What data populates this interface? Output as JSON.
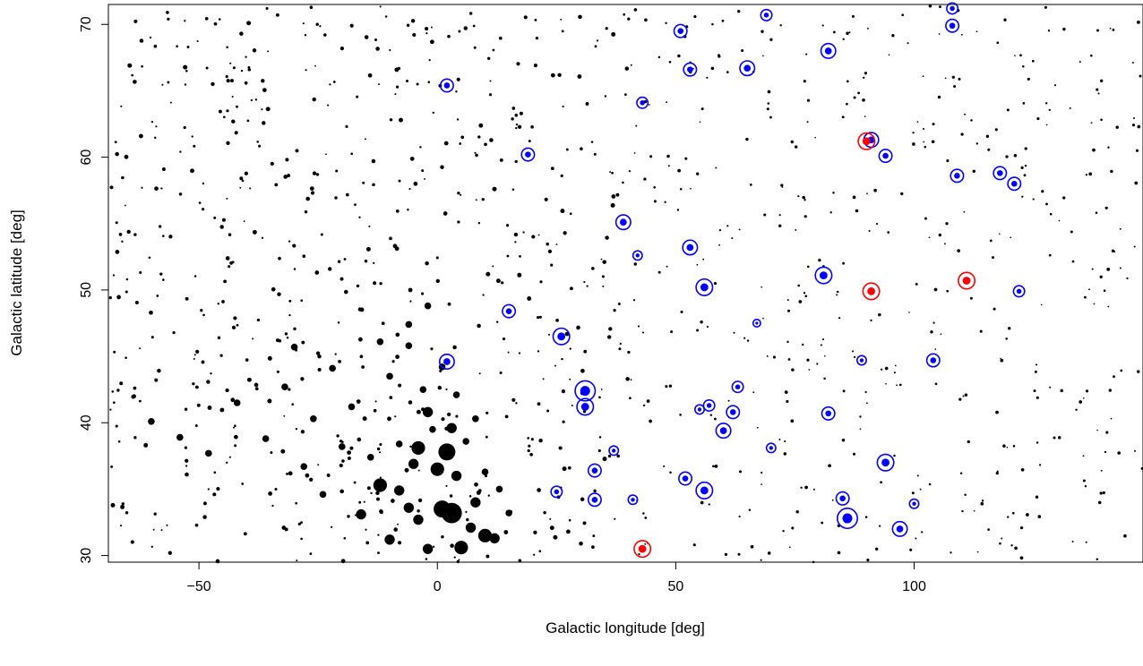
{
  "chart_data": {
    "type": "scatter",
    "title": "",
    "xlabel": "Galactic longitude [deg]",
    "ylabel": "Galactic latitude [deg]",
    "xlim": [
      -69,
      148
    ],
    "ylim": [
      29.5,
      71.5
    ],
    "xticks": [
      -50,
      0,
      50,
      100
    ],
    "yticks": [
      30,
      40,
      50,
      60,
      70
    ],
    "xtick_labels": [
      "−50",
      "0",
      "50",
      "100"
    ],
    "ytick_labels": [
      "30",
      "40",
      "50",
      "60",
      "70"
    ],
    "grid": false,
    "legend": "none",
    "colors": {
      "background": "#000000",
      "blue": "#0000ff",
      "red": "#ff0000"
    },
    "series": [
      {
        "kind": "large-black-dots",
        "points": [
          [
            1,
            33.5,
            5
          ],
          [
            3,
            33.2,
            6
          ],
          [
            2,
            37.8,
            5
          ],
          [
            -4,
            38.1,
            4
          ],
          [
            0,
            36.5,
            4
          ],
          [
            -12,
            35.3,
            4
          ],
          [
            5,
            30.6,
            4
          ],
          [
            -10,
            31.2,
            3
          ],
          [
            3,
            39.6,
            3
          ],
          [
            -2,
            40.8,
            3
          ],
          [
            10,
            31.5,
            4
          ],
          [
            7,
            32.1,
            3
          ],
          [
            -8,
            34.9,
            3
          ],
          [
            -4,
            32.7,
            3
          ],
          [
            -6,
            33.6,
            3
          ],
          [
            -2,
            30.5,
            3
          ],
          [
            8,
            34.0,
            3
          ],
          [
            12,
            31.3,
            3
          ],
          [
            -16,
            33.1,
            3
          ],
          [
            -5,
            36.9,
            3
          ],
          [
            4,
            36.0,
            3
          ],
          [
            -8,
            38.4,
            2
          ],
          [
            -14,
            37.4,
            2
          ],
          [
            -3,
            42.5,
            2
          ],
          [
            1,
            44.2,
            2
          ],
          [
            -6,
            45.8,
            2
          ],
          [
            -10,
            43.5,
            2
          ],
          [
            -12,
            46.1,
            2
          ],
          [
            6,
            38.6,
            2
          ],
          [
            10,
            36.3,
            2
          ],
          [
            -1,
            39.5,
            2
          ],
          [
            -20,
            38.2,
            2
          ],
          [
            -24,
            34.6,
            2
          ],
          [
            -28,
            36.7,
            2
          ],
          [
            -18,
            41.2,
            2
          ],
          [
            -26,
            40.3,
            2
          ],
          [
            -32,
            42.7,
            2
          ],
          [
            -36,
            38.8,
            2
          ],
          [
            -42,
            41.5,
            2
          ],
          [
            -54,
            38.9,
            2
          ],
          [
            -60,
            40.1,
            2
          ],
          [
            -48,
            37.7,
            2
          ],
          [
            -6,
            47.4,
            2
          ],
          [
            -2,
            48.8,
            2
          ],
          [
            4,
            42.1,
            2
          ],
          [
            8,
            40.3,
            2
          ],
          [
            13,
            35.0,
            2
          ],
          [
            15,
            33.2,
            2
          ],
          [
            -22,
            44.1,
            2
          ],
          [
            -30,
            45.7,
            2
          ]
        ]
      },
      {
        "kind": "blue-circled",
        "points": [
          [
            2,
            65.4,
            6
          ],
          [
            43,
            64.1,
            5
          ],
          [
            19,
            60.2,
            6
          ],
          [
            15,
            48.4,
            6
          ],
          [
            26,
            46.5,
            8
          ],
          [
            39,
            55.1,
            7
          ],
          [
            42,
            52.6,
            4
          ],
          [
            31,
            42.4,
            10
          ],
          [
            31,
            41.2,
            8
          ],
          [
            2,
            44.6,
            7
          ],
          [
            25,
            34.8,
            5
          ],
          [
            33,
            34.2,
            6
          ],
          [
            33,
            36.4,
            6
          ],
          [
            37,
            37.9,
            4
          ],
          [
            41,
            34.2,
            4
          ],
          [
            51,
            69.5,
            6
          ],
          [
            53,
            66.6,
            6
          ],
          [
            65,
            66.7,
            7
          ],
          [
            69,
            70.7,
            5
          ],
          [
            82,
            68.0,
            7
          ],
          [
            108,
            71.2,
            5
          ],
          [
            108,
            69.9,
            6
          ],
          [
            91,
            61.3,
            7
          ],
          [
            94,
            60.1,
            6
          ],
          [
            109,
            58.6,
            6
          ],
          [
            118,
            58.8,
            6
          ],
          [
            121,
            58.0,
            6
          ],
          [
            53,
            53.2,
            7
          ],
          [
            56,
            50.2,
            8
          ],
          [
            81,
            51.1,
            8
          ],
          [
            67,
            47.5,
            3
          ],
          [
            122,
            49.9,
            5
          ],
          [
            89,
            44.7,
            4
          ],
          [
            104,
            44.7,
            6
          ],
          [
            63,
            42.7,
            5
          ],
          [
            55,
            41.0,
            4
          ],
          [
            57,
            41.3,
            5
          ],
          [
            62,
            40.8,
            6
          ],
          [
            82,
            40.7,
            6
          ],
          [
            60,
            39.4,
            7
          ],
          [
            70,
            38.1,
            4
          ],
          [
            52,
            35.8,
            6
          ],
          [
            56,
            34.9,
            8
          ],
          [
            94,
            37.0,
            8
          ],
          [
            85,
            34.3,
            6
          ],
          [
            86,
            32.8,
            10
          ],
          [
            97,
            32.0,
            7
          ],
          [
            100,
            33.9,
            4
          ]
        ]
      },
      {
        "kind": "red-circled",
        "points": [
          [
            90,
            61.2,
            8
          ],
          [
            91,
            49.9,
            8
          ],
          [
            111,
            50.7,
            8
          ],
          [
            43,
            30.5,
            8
          ]
        ]
      }
    ],
    "background_field": "scattered small black points over the full plot area, denser toward low longitude"
  }
}
